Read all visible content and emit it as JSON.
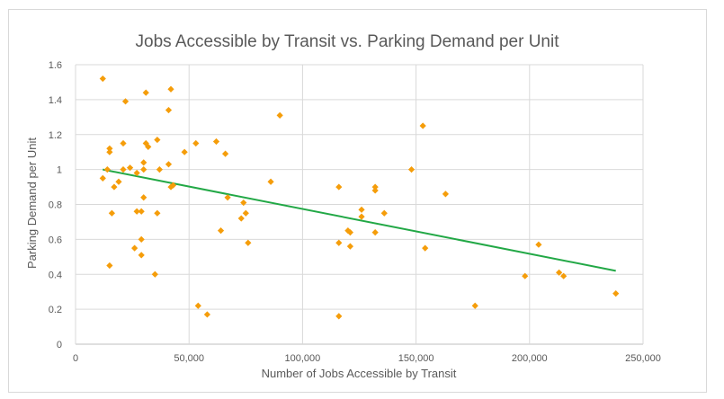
{
  "chart_data": {
    "type": "scatter",
    "title": "Jobs Accessible by Transit vs. Parking Demand per Unit",
    "xlabel": "Number of Jobs Accessible by Transit",
    "ylabel": "Parking Demand per Unit",
    "xlim": [
      0,
      250000
    ],
    "ylim": [
      0,
      1.6
    ],
    "x_ticks": [
      0,
      50000,
      100000,
      150000,
      200000,
      250000
    ],
    "x_tick_labels": [
      "0",
      "50,000",
      "100,000",
      "150,000",
      "200,000",
      "250,000"
    ],
    "y_ticks": [
      0,
      0.2,
      0.4,
      0.6,
      0.8,
      1,
      1.2,
      1.4,
      1.6
    ],
    "y_tick_labels": [
      "0",
      "0.2",
      "0.4",
      "0.6",
      "0.8",
      "1",
      "1.2",
      "1.4",
      "1.6"
    ],
    "grid": "vertical and horizontal",
    "marker_color": "#f59d0a",
    "trendline_color": "#22a846",
    "trendline": {
      "x": [
        12000,
        238000
      ],
      "y": [
        1.0,
        0.42
      ]
    },
    "points": [
      [
        12000,
        1.52
      ],
      [
        12000,
        0.95
      ],
      [
        14000,
        1.0
      ],
      [
        15000,
        1.12
      ],
      [
        15000,
        1.1
      ],
      [
        15000,
        0.45
      ],
      [
        16000,
        0.75
      ],
      [
        17000,
        0.9
      ],
      [
        19000,
        0.93
      ],
      [
        21000,
        1.0
      ],
      [
        21000,
        1.15
      ],
      [
        22000,
        1.39
      ],
      [
        24000,
        1.01
      ],
      [
        26000,
        0.55
      ],
      [
        27000,
        0.98
      ],
      [
        27000,
        0.76
      ],
      [
        29000,
        0.76
      ],
      [
        29000,
        0.6
      ],
      [
        29000,
        0.51
      ],
      [
        30000,
        1.04
      ],
      [
        30000,
        1.0
      ],
      [
        30000,
        0.84
      ],
      [
        31000,
        1.44
      ],
      [
        31000,
        1.15
      ],
      [
        32000,
        1.13
      ],
      [
        35000,
        0.4
      ],
      [
        36000,
        1.17
      ],
      [
        36000,
        0.75
      ],
      [
        37000,
        1.0
      ],
      [
        41000,
        1.34
      ],
      [
        41000,
        1.03
      ],
      [
        42000,
        0.9
      ],
      [
        42000,
        1.46
      ],
      [
        43000,
        0.91
      ],
      [
        48000,
        1.1
      ],
      [
        53000,
        1.15
      ],
      [
        54000,
        0.22
      ],
      [
        58000,
        0.17
      ],
      [
        62000,
        1.16
      ],
      [
        64000,
        0.65
      ],
      [
        66000,
        1.09
      ],
      [
        67000,
        0.84
      ],
      [
        73000,
        0.72
      ],
      [
        74000,
        0.81
      ],
      [
        75000,
        0.75
      ],
      [
        76000,
        0.58
      ],
      [
        86000,
        0.93
      ],
      [
        90000,
        1.31
      ],
      [
        116000,
        0.9
      ],
      [
        116000,
        0.58
      ],
      [
        116000,
        0.16
      ],
      [
        120000,
        0.65
      ],
      [
        121000,
        0.56
      ],
      [
        121000,
        0.64
      ],
      [
        126000,
        0.77
      ],
      [
        126000,
        0.73
      ],
      [
        132000,
        0.9
      ],
      [
        132000,
        0.88
      ],
      [
        132000,
        0.64
      ],
      [
        136000,
        0.75
      ],
      [
        148000,
        1.0
      ],
      [
        153000,
        1.25
      ],
      [
        154000,
        0.55
      ],
      [
        163000,
        0.86
      ],
      [
        176000,
        0.22
      ],
      [
        198000,
        0.39
      ],
      [
        204000,
        0.57
      ],
      [
        213000,
        0.41
      ],
      [
        215000,
        0.39
      ],
      [
        238000,
        0.29
      ]
    ]
  }
}
